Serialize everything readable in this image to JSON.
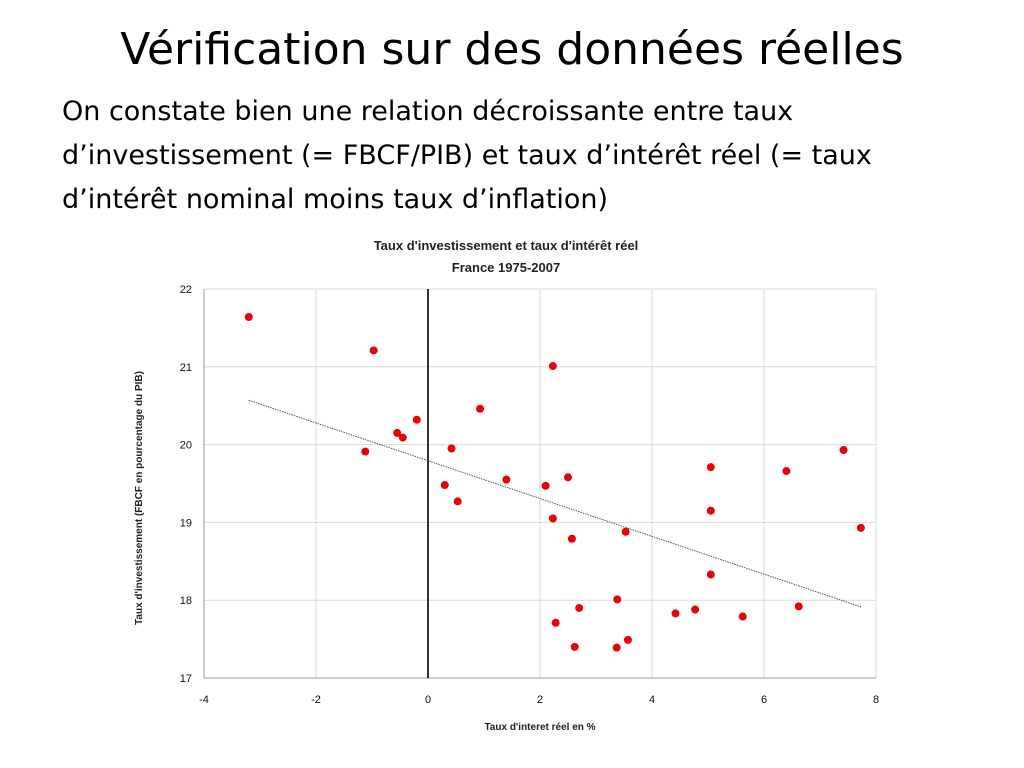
{
  "slide": {
    "title": "Vérification sur des données réelles",
    "body": "On constate bien une relation décroissante entre taux d’investissement (= FBCF/PIB) et taux d’intérêt réel (= taux d’intérêt nominal moins taux d’inflation)"
  },
  "chart_data": {
    "type": "scatter",
    "title": "Taux d'investissement et taux d'intérêt réel",
    "subtitle": "France 1975-2007",
    "xlabel": "Taux d'interet réel en %",
    "ylabel": "Taux d'investissement (FBCF en pourcentage du PIB)",
    "xlim": [
      -4,
      8
    ],
    "ylim": [
      17,
      22
    ],
    "xticks": [
      -4,
      -2,
      0,
      2,
      4,
      6,
      8
    ],
    "yticks": [
      17,
      18,
      19,
      20,
      21,
      22
    ],
    "grid": true,
    "point_color": "#e8000b",
    "trendline": {
      "x": [
        -3.2,
        7.75
      ],
      "y": [
        20.57,
        17.91
      ]
    },
    "points": [
      {
        "x": -3.2,
        "y": 21.64
      },
      {
        "x": -0.97,
        "y": 21.21
      },
      {
        "x": -1.12,
        "y": 19.91
      },
      {
        "x": -0.55,
        "y": 20.15
      },
      {
        "x": -0.45,
        "y": 20.09
      },
      {
        "x": -0.2,
        "y": 20.32
      },
      {
        "x": 0.3,
        "y": 19.48
      },
      {
        "x": 0.42,
        "y": 19.95
      },
      {
        "x": 0.53,
        "y": 19.27
      },
      {
        "x": 0.93,
        "y": 20.46
      },
      {
        "x": 1.4,
        "y": 19.55
      },
      {
        "x": 2.1,
        "y": 19.47
      },
      {
        "x": 2.23,
        "y": 21.01
      },
      {
        "x": 2.23,
        "y": 19.05
      },
      {
        "x": 2.28,
        "y": 17.71
      },
      {
        "x": 2.5,
        "y": 19.58
      },
      {
        "x": 2.57,
        "y": 18.79
      },
      {
        "x": 2.62,
        "y": 17.4
      },
      {
        "x": 2.7,
        "y": 17.9
      },
      {
        "x": 3.38,
        "y": 18.01
      },
      {
        "x": 3.37,
        "y": 17.39
      },
      {
        "x": 3.53,
        "y": 18.88
      },
      {
        "x": 3.57,
        "y": 17.49
      },
      {
        "x": 4.42,
        "y": 17.83
      },
      {
        "x": 4.77,
        "y": 17.88
      },
      {
        "x": 5.05,
        "y": 19.71
      },
      {
        "x": 5.05,
        "y": 19.15
      },
      {
        "x": 5.05,
        "y": 18.33
      },
      {
        "x": 5.62,
        "y": 17.79
      },
      {
        "x": 6.4,
        "y": 19.66
      },
      {
        "x": 6.62,
        "y": 17.92
      },
      {
        "x": 7.42,
        "y": 19.93
      },
      {
        "x": 7.73,
        "y": 18.93
      }
    ]
  }
}
